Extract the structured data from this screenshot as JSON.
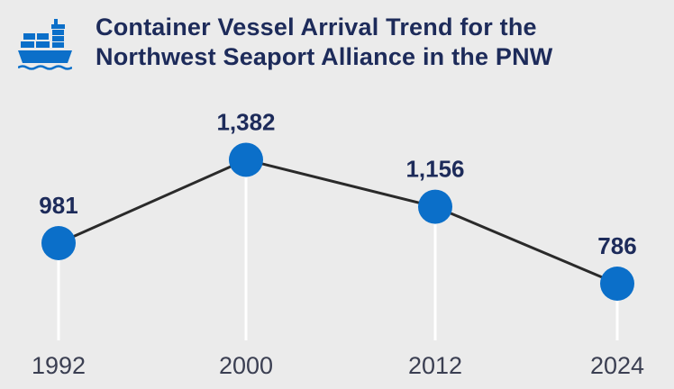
{
  "title_line1": "Container Vessel Arrival Trend for the",
  "title_line2": "Northwest Seaport Alliance in the PNW",
  "icon": "container-ship-icon",
  "colors": {
    "background": "#ebebeb",
    "title": "#1d2b5a",
    "marker": "#0b6fc9",
    "line": "#2a2a2a",
    "drop_line": "#ffffff",
    "tick": "#3b3f52"
  },
  "chart_data": {
    "type": "line",
    "title": "Container Vessel Arrival Trend for the Northwest Seaport Alliance in the PNW",
    "xlabel": "",
    "ylabel": "",
    "categories": [
      "1992",
      "2000",
      "2012",
      "2024"
    ],
    "values": [
      981,
      1382,
      1156,
      786
    ],
    "value_labels": [
      "981",
      "1,382",
      "1,156",
      "786"
    ],
    "ylim": [
      500,
      1500
    ],
    "grid": false,
    "legend": "none"
  }
}
